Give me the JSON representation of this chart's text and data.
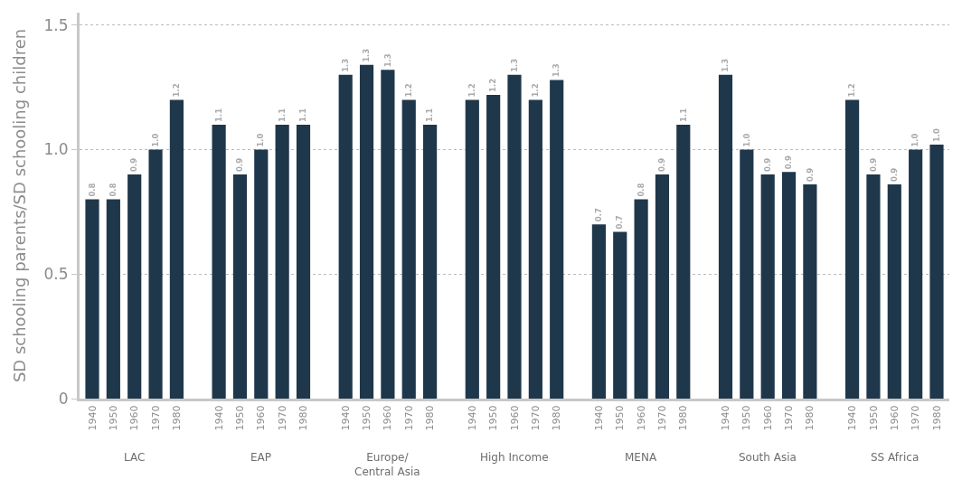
{
  "chart_data": {
    "type": "bar",
    "ylabel": "SD schooling parents/SD schooling children",
    "categories": [
      "1940",
      "1950",
      "1960",
      "1970",
      "1980",
      null,
      "1940",
      "1950",
      "1960",
      "1970",
      "1980",
      null,
      "1940",
      "1950",
      "1960",
      "1970",
      "1980",
      null,
      "1940",
      "1950",
      "1960",
      "1970",
      "1980",
      null,
      "1940",
      "1950",
      "1960",
      "1970",
      "1980",
      null,
      "1940",
      "1950",
      "1960",
      "1970",
      "1980",
      null,
      "1940",
      "1950",
      "1960",
      "1970",
      "1980"
    ],
    "values": [
      0.8,
      0.8,
      0.9,
      1.0,
      1.2,
      null,
      1.1,
      0.9,
      1.0,
      1.1,
      1.1,
      null,
      1.3,
      1.34,
      1.32,
      1.2,
      1.1,
      null,
      1.2,
      1.22,
      1.3,
      1.2,
      1.28,
      null,
      0.7,
      0.67,
      0.8,
      0.9,
      1.1,
      null,
      1.3,
      1.0,
      0.9,
      0.91,
      0.86,
      null,
      1.2,
      0.9,
      0.86,
      1.0,
      1.02
    ],
    "value_labels": [
      "0.8",
      "0.8",
      "0.9",
      "1.0",
      "1.2",
      null,
      "1.1",
      "0.9",
      "1.0",
      "1.1",
      "1.1",
      null,
      "1.3",
      "1.3",
      "1.3",
      "1.2",
      "1.1",
      null,
      "1.2",
      "1.2",
      "1.3",
      "1.2",
      "1.3",
      null,
      "0.7",
      "0.7",
      "0.8",
      "0.9",
      "1.1",
      null,
      "1.3",
      "1.0",
      "0.9",
      "0.9",
      "0.9",
      null,
      "1.2",
      "0.9",
      "0.9",
      "1.0",
      "1.0"
    ],
    "color": "#1f374b",
    "annotations": [
      "LAC",
      "EAP",
      "Europe/\nCentral Asia",
      "High Income",
      "MENA",
      "South Asia",
      "SS Africa"
    ],
    "ylim": [
      0,
      1.55
    ],
    "yticks": [
      {
        "value": 0,
        "label": "0"
      },
      {
        "value": 0.5,
        "label": "0.5"
      },
      {
        "value": 1,
        "label": "1.0"
      },
      {
        "value": 1.5,
        "label": "1.5"
      }
    ],
    "grid": "y"
  }
}
